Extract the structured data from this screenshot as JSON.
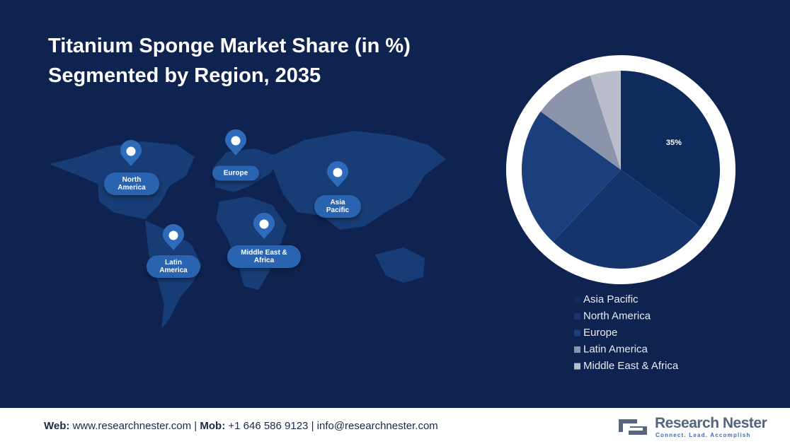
{
  "header": {
    "title_line1": "Titanium Sponge Market Share (in %)",
    "title_line2": "Segmented by Region, 2035"
  },
  "map": {
    "pins": [
      {
        "label": "North America"
      },
      {
        "label": "Europe"
      },
      {
        "label": "Asia Pacific"
      },
      {
        "label": "Middle East & Africa"
      },
      {
        "label": "Latin America"
      }
    ]
  },
  "chart_data": {
    "type": "pie",
    "categories": [
      "Asia Pacific",
      "North America",
      "Europe",
      "Latin America",
      "Middle East & Africa"
    ],
    "values": [
      35,
      27,
      23,
      10,
      5
    ],
    "value_labels": [
      "35%",
      null,
      null,
      null,
      null
    ],
    "colors": [
      "#0f2a5c",
      "#15346c",
      "#1b3f7c",
      "#8b94aa",
      "#b9bdcc"
    ]
  },
  "footer": {
    "web_label": "Web:",
    "web": "www.researchnester.com",
    "mob_label": "Mob:",
    "mob": "+1 646 586 9123",
    "email": "info@researchnester.com",
    "brand": "Research Nester",
    "tagline": "Connect. Lead. Accomplish"
  }
}
